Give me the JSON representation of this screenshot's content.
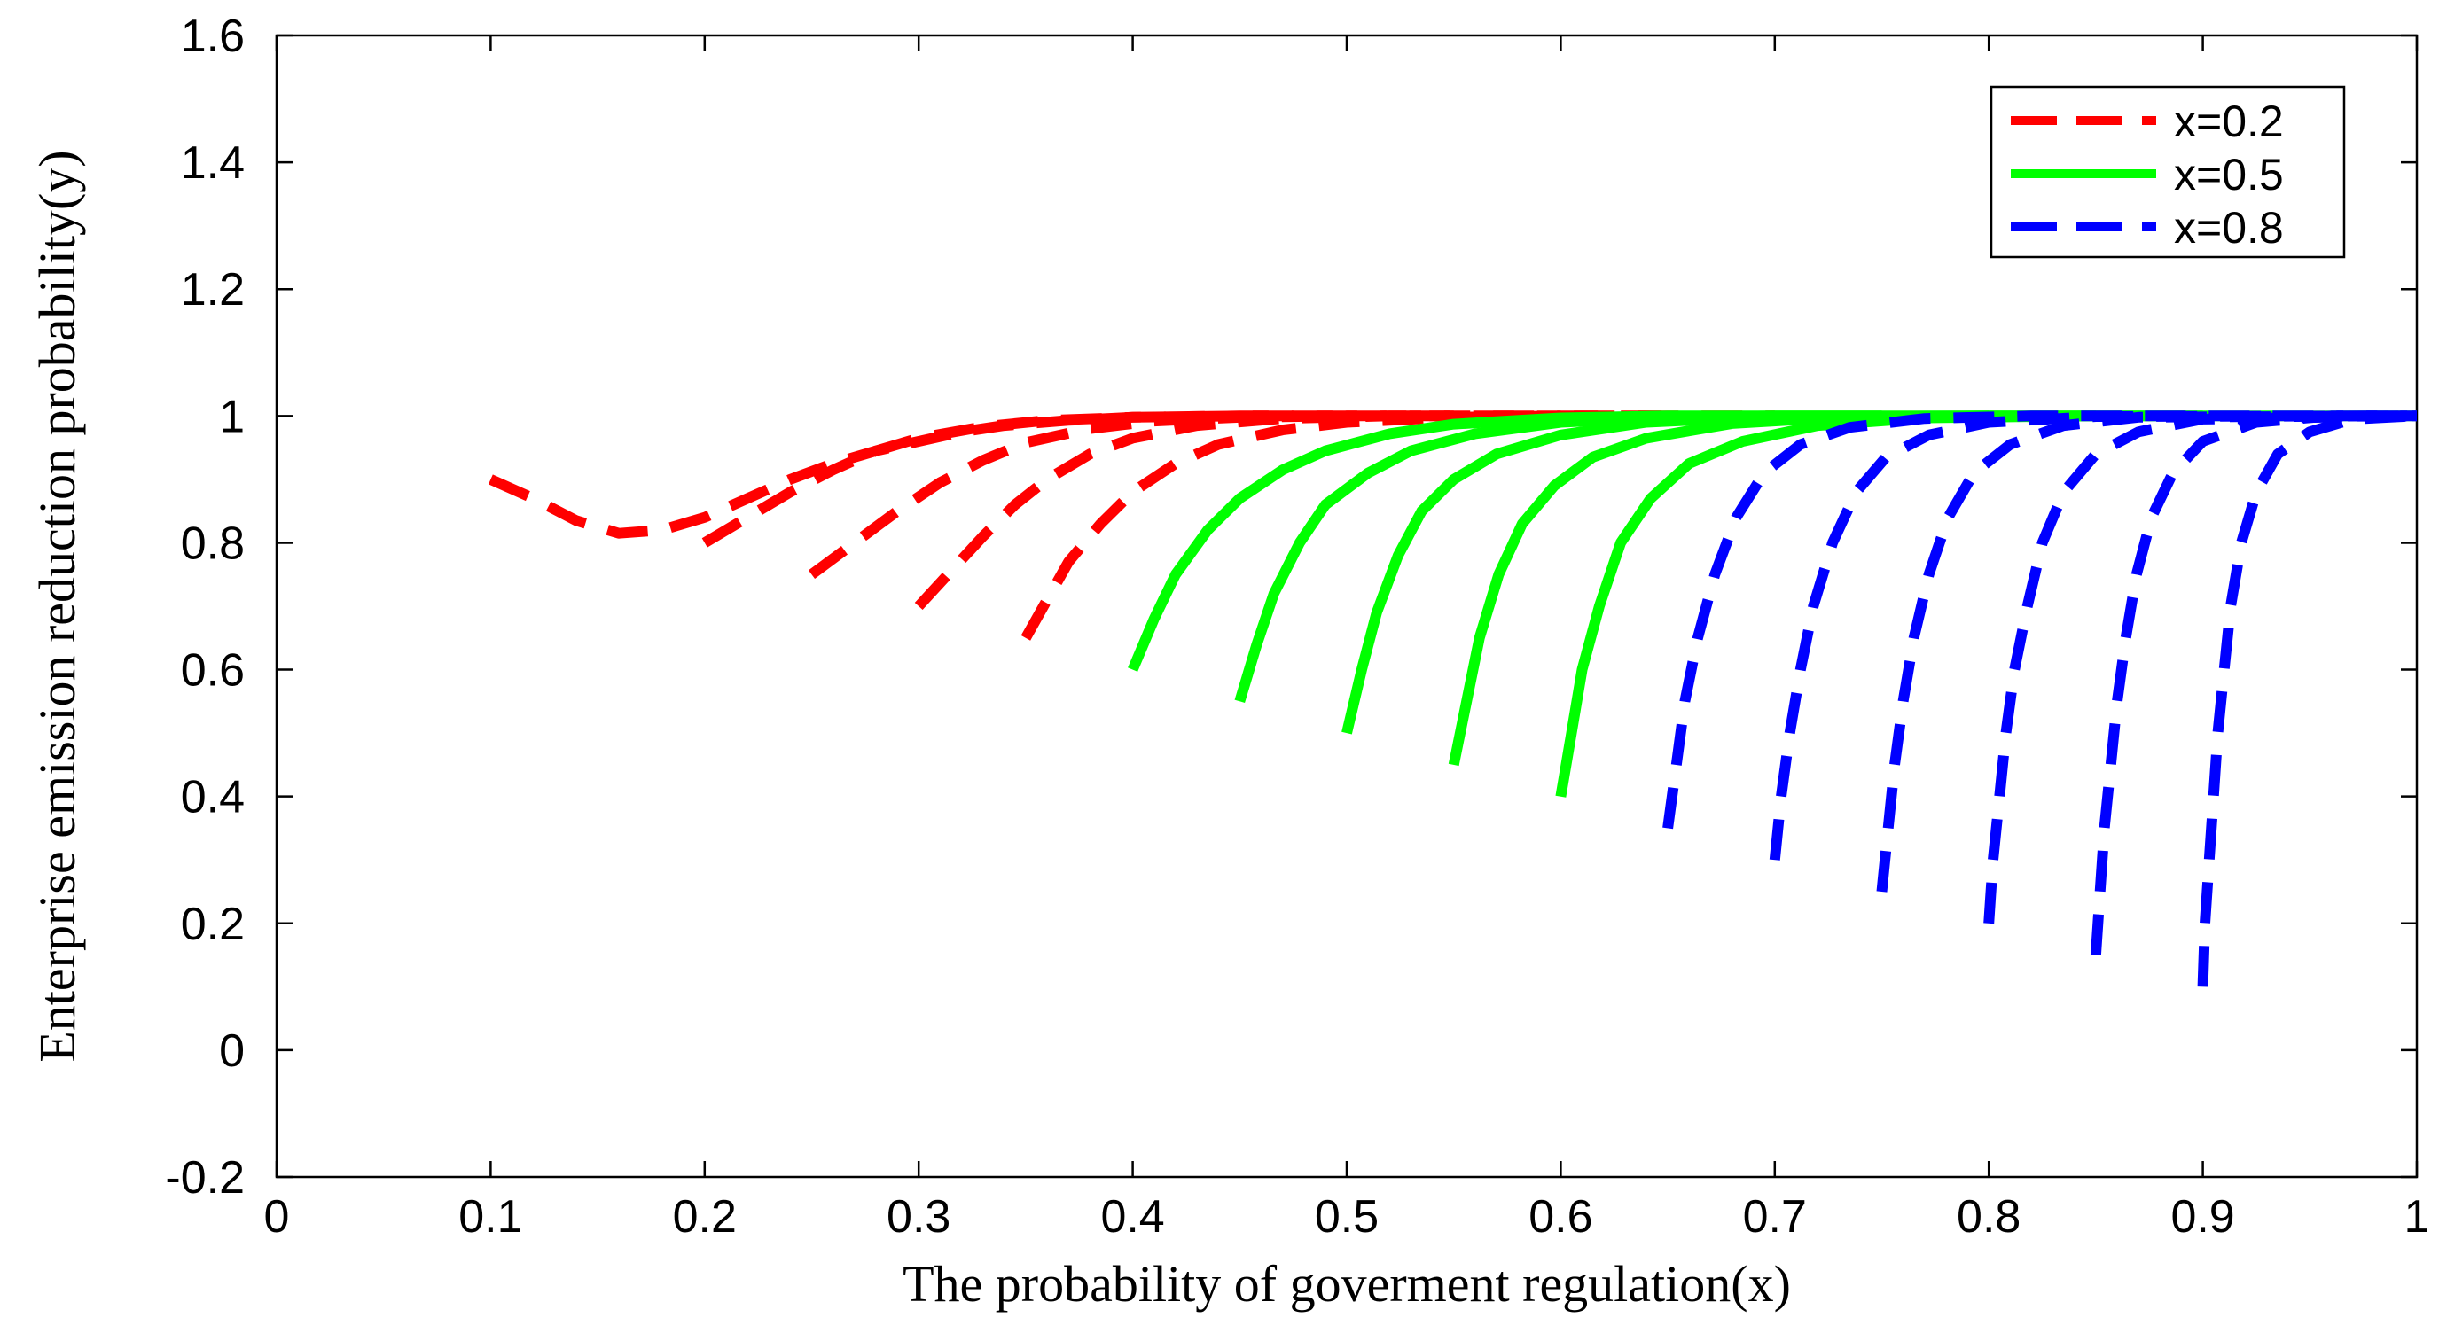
{
  "chart_data": {
    "type": "line",
    "title": "",
    "xlabel": "The probability of goverment regulation(x)",
    "ylabel": "Enterprise emission reduction probability(y)",
    "xlim": [
      0,
      1
    ],
    "ylim": [
      -0.2,
      1.6
    ],
    "xticks": [
      0,
      0.1,
      0.2,
      0.3,
      0.4,
      0.5,
      0.6,
      0.7,
      0.8,
      0.9,
      1
    ],
    "xtick_labels": [
      "0",
      "0.1",
      "0.2",
      "0.3",
      "0.4",
      "0.5",
      "0.6",
      "0.7",
      "0.8",
      "0.9",
      "1"
    ],
    "yticks": [
      -0.2,
      0,
      0.2,
      0.4,
      0.6,
      0.8,
      1,
      1.2,
      1.4,
      1.6
    ],
    "ytick_labels": [
      "-0.2",
      "0",
      "0.2",
      "0.4",
      "0.6",
      "0.8",
      "1",
      "1.2",
      "1.4",
      "1.6"
    ],
    "grid": false,
    "legend_position": "top-right",
    "series": [
      {
        "name": "x=0.2",
        "color": "#ff0000",
        "style": "dashed",
        "trajectories": [
          [
            [
              0.1,
              0.9
            ],
            [
              0.12,
              0.87
            ],
            [
              0.14,
              0.835
            ],
            [
              0.16,
              0.815
            ],
            [
              0.18,
              0.82
            ],
            [
              0.2,
              0.84
            ],
            [
              0.22,
              0.87
            ],
            [
              0.24,
              0.9
            ],
            [
              0.26,
              0.925
            ],
            [
              0.28,
              0.945
            ],
            [
              0.3,
              0.96
            ],
            [
              0.32,
              0.975
            ],
            [
              0.34,
              0.985
            ],
            [
              0.37,
              0.993
            ],
            [
              0.4,
              0.998
            ],
            [
              0.45,
              1.0
            ],
            [
              0.5,
              1.0
            ]
          ],
          [
            [
              0.2,
              0.8
            ],
            [
              0.22,
              0.84
            ],
            [
              0.24,
              0.88
            ],
            [
              0.26,
              0.915
            ],
            [
              0.28,
              0.945
            ],
            [
              0.3,
              0.965
            ],
            [
              0.33,
              0.983
            ],
            [
              0.36,
              0.993
            ],
            [
              0.4,
              0.998
            ],
            [
              0.45,
              1.0
            ],
            [
              0.55,
              1.0
            ]
          ],
          [
            [
              0.25,
              0.75
            ],
            [
              0.27,
              0.8
            ],
            [
              0.29,
              0.85
            ],
            [
              0.31,
              0.895
            ],
            [
              0.33,
              0.93
            ],
            [
              0.35,
              0.958
            ],
            [
              0.38,
              0.98
            ],
            [
              0.41,
              0.992
            ],
            [
              0.45,
              0.998
            ],
            [
              0.5,
              1.0
            ],
            [
              0.6,
              1.0
            ]
          ],
          [
            [
              0.3,
              0.7
            ],
            [
              0.315,
              0.755
            ],
            [
              0.33,
              0.81
            ],
            [
              0.345,
              0.86
            ],
            [
              0.36,
              0.9
            ],
            [
              0.38,
              0.94
            ],
            [
              0.4,
              0.965
            ],
            [
              0.43,
              0.985
            ],
            [
              0.47,
              0.996
            ],
            [
              0.52,
              1.0
            ],
            [
              0.65,
              1.0
            ]
          ],
          [
            [
              0.35,
              0.65
            ],
            [
              0.36,
              0.71
            ],
            [
              0.37,
              0.77
            ],
            [
              0.385,
              0.83
            ],
            [
              0.4,
              0.88
            ],
            [
              0.42,
              0.925
            ],
            [
              0.44,
              0.955
            ],
            [
              0.47,
              0.978
            ],
            [
              0.5,
              0.99
            ],
            [
              0.55,
              0.998
            ],
            [
              0.6,
              1.0
            ],
            [
              0.7,
              1.0
            ]
          ]
        ]
      },
      {
        "name": "x=0.5",
        "color": "#00ff00",
        "style": "solid",
        "trajectories": [
          [
            [
              0.4,
              0.6
            ],
            [
              0.41,
              0.68
            ],
            [
              0.42,
              0.75
            ],
            [
              0.435,
              0.82
            ],
            [
              0.45,
              0.87
            ],
            [
              0.47,
              0.915
            ],
            [
              0.49,
              0.945
            ],
            [
              0.52,
              0.972
            ],
            [
              0.55,
              0.987
            ],
            [
              0.6,
              0.997
            ],
            [
              0.65,
              1.0
            ],
            [
              0.75,
              1.0
            ]
          ],
          [
            [
              0.45,
              0.55
            ],
            [
              0.458,
              0.64
            ],
            [
              0.466,
              0.72
            ],
            [
              0.478,
              0.8
            ],
            [
              0.49,
              0.86
            ],
            [
              0.51,
              0.91
            ],
            [
              0.53,
              0.945
            ],
            [
              0.56,
              0.972
            ],
            [
              0.6,
              0.99
            ],
            [
              0.65,
              0.998
            ],
            [
              0.7,
              1.0
            ],
            [
              0.8,
              1.0
            ]
          ],
          [
            [
              0.5,
              0.5
            ],
            [
              0.507,
              0.6
            ],
            [
              0.514,
              0.69
            ],
            [
              0.524,
              0.78
            ],
            [
              0.535,
              0.85
            ],
            [
              0.55,
              0.9
            ],
            [
              0.57,
              0.94
            ],
            [
              0.6,
              0.97
            ],
            [
              0.64,
              0.99
            ],
            [
              0.7,
              0.999
            ],
            [
              0.8,
              1.0
            ],
            [
              0.85,
              1.0
            ]
          ],
          [
            [
              0.55,
              0.45
            ],
            [
              0.556,
              0.55
            ],
            [
              0.562,
              0.65
            ],
            [
              0.571,
              0.75
            ],
            [
              0.582,
              0.83
            ],
            [
              0.597,
              0.89
            ],
            [
              0.615,
              0.935
            ],
            [
              0.64,
              0.965
            ],
            [
              0.68,
              0.988
            ],
            [
              0.73,
              0.998
            ],
            [
              0.8,
              1.0
            ],
            [
              0.9,
              1.0
            ]
          ],
          [
            [
              0.6,
              0.4
            ],
            [
              0.605,
              0.5
            ],
            [
              0.61,
              0.6
            ],
            [
              0.618,
              0.7
            ],
            [
              0.628,
              0.8
            ],
            [
              0.642,
              0.87
            ],
            [
              0.66,
              0.925
            ],
            [
              0.685,
              0.96
            ],
            [
              0.72,
              0.985
            ],
            [
              0.77,
              0.997
            ],
            [
              0.85,
              1.0
            ],
            [
              1.0,
              1.0
            ]
          ]
        ]
      },
      {
        "name": "x=0.8",
        "color": "#0000ff",
        "style": "dashed",
        "trajectories": [
          [
            [
              0.65,
              0.35
            ],
            [
              0.654,
              0.45
            ],
            [
              0.658,
              0.55
            ],
            [
              0.664,
              0.65
            ],
            [
              0.672,
              0.75
            ],
            [
              0.682,
              0.84
            ],
            [
              0.695,
              0.91
            ],
            [
              0.712,
              0.955
            ],
            [
              0.735,
              0.982
            ],
            [
              0.77,
              0.996
            ],
            [
              0.82,
              1.0
            ],
            [
              1.0,
              1.0
            ]
          ],
          [
            [
              0.7,
              0.3
            ],
            [
              0.703,
              0.4
            ],
            [
              0.707,
              0.5
            ],
            [
              0.712,
              0.6
            ],
            [
              0.718,
              0.7
            ],
            [
              0.727,
              0.8
            ],
            [
              0.738,
              0.88
            ],
            [
              0.752,
              0.935
            ],
            [
              0.772,
              0.97
            ],
            [
              0.8,
              0.99
            ],
            [
              0.85,
              0.999
            ],
            [
              1.0,
              1.0
            ]
          ],
          [
            [
              0.75,
              0.25
            ],
            [
              0.753,
              0.35
            ],
            [
              0.756,
              0.45
            ],
            [
              0.76,
              0.55
            ],
            [
              0.765,
              0.65
            ],
            [
              0.772,
              0.75
            ],
            [
              0.781,
              0.84
            ],
            [
              0.793,
              0.91
            ],
            [
              0.81,
              0.955
            ],
            [
              0.835,
              0.985
            ],
            [
              0.87,
              0.998
            ],
            [
              1.0,
              1.0
            ]
          ],
          [
            [
              0.8,
              0.2
            ],
            [
              0.802,
              0.3
            ],
            [
              0.805,
              0.4
            ],
            [
              0.808,
              0.5
            ],
            [
              0.812,
              0.6
            ],
            [
              0.818,
              0.7
            ],
            [
              0.825,
              0.8
            ],
            [
              0.835,
              0.88
            ],
            [
              0.85,
              0.94
            ],
            [
              0.87,
              0.975
            ],
            [
              0.9,
              0.995
            ],
            [
              1.0,
              1.0
            ]
          ],
          [
            [
              0.85,
              0.15
            ],
            [
              0.852,
              0.25
            ],
            [
              0.854,
              0.35
            ],
            [
              0.857,
              0.45
            ],
            [
              0.86,
              0.55
            ],
            [
              0.864,
              0.65
            ],
            [
              0.869,
              0.75
            ],
            [
              0.876,
              0.84
            ],
            [
              0.886,
              0.91
            ],
            [
              0.9,
              0.96
            ],
            [
              0.925,
              0.99
            ],
            [
              0.96,
              1.0
            ],
            [
              1.0,
              1.0
            ]
          ],
          [
            [
              0.9,
              0.1
            ],
            [
              0.901,
              0.2
            ],
            [
              0.903,
              0.3
            ],
            [
              0.905,
              0.4
            ],
            [
              0.907,
              0.5
            ],
            [
              0.91,
              0.6
            ],
            [
              0.913,
              0.7
            ],
            [
              0.918,
              0.8
            ],
            [
              0.925,
              0.88
            ],
            [
              0.935,
              0.94
            ],
            [
              0.95,
              0.975
            ],
            [
              0.97,
              0.995
            ],
            [
              1.0,
              1.0
            ]
          ]
        ]
      }
    ]
  }
}
